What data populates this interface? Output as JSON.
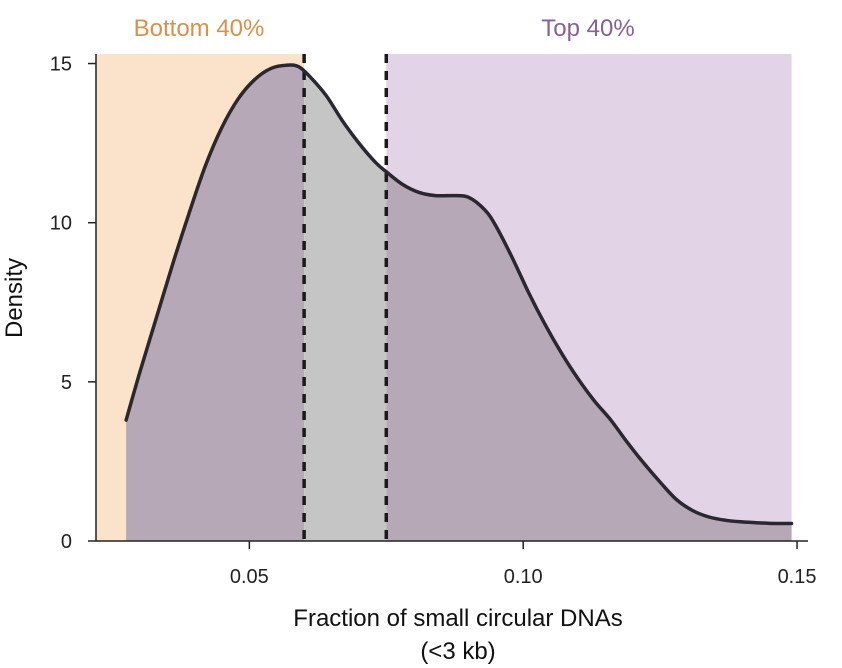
{
  "chart_data": {
    "type": "area",
    "xlabel": "Fraction of small circular DNAs",
    "xlabel_sub": "(<3 kb)",
    "ylabel": "Density",
    "xlim": [
      0.022,
      0.152
    ],
    "ylim": [
      0,
      15.3
    ],
    "xticks": [
      0.05,
      0.1,
      0.15
    ],
    "xtick_labels": [
      "0.05",
      "0.10",
      "0.15"
    ],
    "yticks": [
      0,
      5,
      10,
      15
    ],
    "ytick_labels": [
      "0",
      "5",
      "10",
      "15"
    ],
    "bands": [
      {
        "name": "bottom-40",
        "label": "Bottom 40%",
        "x_start": 0.022,
        "x_end": 0.06,
        "color": "#fbe2ca",
        "label_color": "#d9904a"
      },
      {
        "name": "top-40",
        "label": "Top 40%",
        "x_start": 0.075,
        "x_end": 0.149,
        "color": "#e2d3e6",
        "label_color": "#8a5f96"
      }
    ],
    "thresholds": [
      0.06,
      0.075
    ],
    "density_curve": {
      "x": [
        0.0275,
        0.03,
        0.033,
        0.036,
        0.039,
        0.042,
        0.045,
        0.048,
        0.051,
        0.054,
        0.057,
        0.059,
        0.061,
        0.064,
        0.067,
        0.07,
        0.073,
        0.075,
        0.078,
        0.081,
        0.084,
        0.087,
        0.09,
        0.093,
        0.095,
        0.098,
        0.101,
        0.104,
        0.107,
        0.11,
        0.113,
        0.116,
        0.119,
        0.122,
        0.125,
        0.128,
        0.131,
        0.134,
        0.137,
        0.14,
        0.143,
        0.146,
        0.149
      ],
      "y": [
        3.8,
        5.3,
        7.0,
        8.7,
        10.3,
        11.8,
        13.0,
        13.9,
        14.5,
        14.85,
        14.95,
        14.9,
        14.6,
        14.0,
        13.2,
        12.5,
        11.9,
        11.6,
        11.2,
        10.95,
        10.85,
        10.85,
        10.8,
        10.4,
        9.9,
        8.9,
        7.8,
        6.8,
        5.9,
        5.1,
        4.4,
        3.8,
        3.1,
        2.45,
        1.85,
        1.3,
        0.95,
        0.75,
        0.65,
        0.6,
        0.57,
        0.55,
        0.55
      ],
      "line_color": "#2a2730",
      "fill_color": "#b6a8b6",
      "middle_fill_color": "#c5c5c5"
    }
  }
}
